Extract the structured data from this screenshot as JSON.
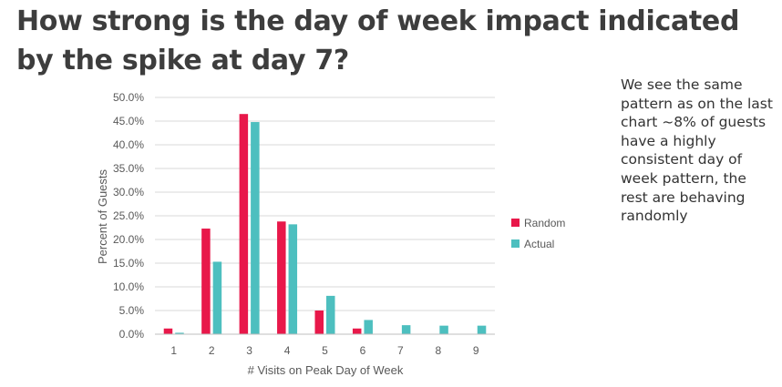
{
  "slide": {
    "title": "How strong is the day of week impact indicated by the spike at day 7?",
    "side_note": "We see the same pattern as on the last chart ~8% of guests have a highly consistent day of week pattern, the rest are behaving randomly"
  },
  "chart_data": {
    "type": "bar",
    "categories": [
      "1",
      "2",
      "3",
      "4",
      "5",
      "6",
      "7",
      "8",
      "9"
    ],
    "series": [
      {
        "name": "Random",
        "color": "#e8184a",
        "values": [
          1.2,
          22.3,
          46.5,
          23.8,
          5.0,
          1.2,
          0.0,
          0.0,
          0.0
        ]
      },
      {
        "name": "Actual",
        "color": "#4dbfbf",
        "values": [
          0.3,
          15.3,
          44.8,
          23.2,
          8.1,
          3.0,
          1.9,
          1.8,
          1.8
        ]
      }
    ],
    "xlabel": "# Visits on Peak Day of Week",
    "ylabel": "Percent of Guests",
    "ylim": [
      0,
      50
    ],
    "yticks": [
      "0.0%",
      "5.0%",
      "10.0%",
      "15.0%",
      "20.0%",
      "25.0%",
      "30.0%",
      "35.0%",
      "40.0%",
      "45.0%",
      "50.0%"
    ],
    "grid": true,
    "legend": "right"
  }
}
